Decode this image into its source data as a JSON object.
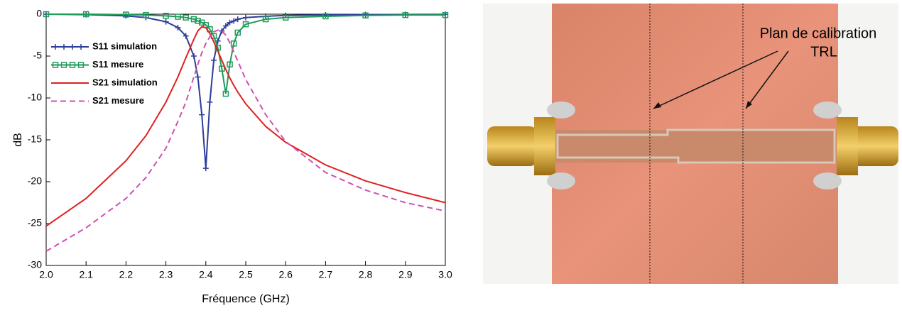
{
  "chart_data": {
    "type": "line",
    "xlabel": "Fréquence (GHz)",
    "ylabel": "dB",
    "x": [
      2.0,
      2.1,
      2.2,
      2.25,
      2.3,
      2.33,
      2.35,
      2.37,
      2.38,
      2.39,
      2.4,
      2.41,
      2.42,
      2.43,
      2.44,
      2.45,
      2.46,
      2.47,
      2.48,
      2.5,
      2.55,
      2.6,
      2.7,
      2.8,
      2.9,
      3.0
    ],
    "series": [
      {
        "name": "S11 simulation",
        "color": "#2e3d98",
        "marker": "plus",
        "dash": false,
        "values": [
          0,
          -0.05,
          -0.2,
          -0.4,
          -0.9,
          -1.6,
          -2.6,
          -5,
          -7.5,
          -12,
          -18.4,
          -10.5,
          -5.5,
          -3.2,
          -2,
          -1.4,
          -1,
          -0.8,
          -0.6,
          -0.4,
          -0.25,
          -0.15,
          -0.08,
          -0.05,
          -0.03,
          -0.02
        ]
      },
      {
        "name": "S11 mesure",
        "color": "#1e9a5a",
        "marker": "square",
        "dash": false,
        "values": [
          0,
          0,
          -0.05,
          -0.1,
          -0.2,
          -0.3,
          -0.4,
          -0.6,
          -0.8,
          -1.0,
          -1.3,
          -1.8,
          -2.6,
          -4,
          -6.5,
          -9.5,
          -6,
          -3.5,
          -2.2,
          -1.2,
          -0.6,
          -0.4,
          -0.25,
          -0.15,
          -0.1,
          -0.1
        ]
      },
      {
        "name": "S21 simulation",
        "color": "#e0201e",
        "marker": "none",
        "dash": false,
        "values": [
          -25.3,
          -22,
          -17.5,
          -14.5,
          -10.5,
          -7.5,
          -5.2,
          -3,
          -2,
          -1.5,
          -1.6,
          -2.3,
          -3.3,
          -4.4,
          -5.5,
          -6.6,
          -7.6,
          -8.5,
          -9.3,
          -10.7,
          -13.4,
          -15.3,
          -18,
          -19.9,
          -21.3,
          -22.5
        ]
      },
      {
        "name": "S21 mesure",
        "color": "#d050b0",
        "marker": "none",
        "dash": true,
        "values": [
          -28.3,
          -25.5,
          -22,
          -19.5,
          -16,
          -12.8,
          -10.5,
          -7.5,
          -6,
          -4.6,
          -3.5,
          -2.7,
          -2.1,
          -1.9,
          -2,
          -2.5,
          -3.4,
          -4.5,
          -5.6,
          -7.8,
          -12,
          -15.2,
          -18.9,
          -21,
          -22.5,
          -23.5
        ]
      }
    ],
    "xlim": [
      2.0,
      3.0
    ],
    "xticks": [
      {
        "value": 2,
        "label": "2.0"
      },
      2.1,
      2.2,
      2.3,
      2.4,
      2.5,
      2.6,
      2.7,
      2.8,
      2.9,
      {
        "value": 3,
        "label": "3.0"
      }
    ],
    "ylim": [
      -30,
      0
    ],
    "yticks": [
      0,
      -5,
      -10,
      -15,
      -20,
      -25,
      -30
    ],
    "legend": "upper-left",
    "grid": false
  },
  "photo": {
    "annotation": [
      "Plan de calibration",
      "TRL"
    ]
  }
}
